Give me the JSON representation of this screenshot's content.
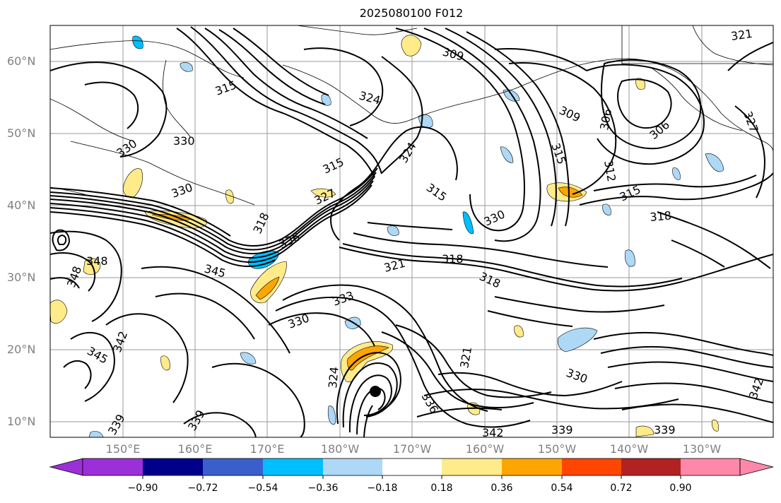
{
  "title": "2025080100 F012",
  "lat_labels": [
    "60°N",
    "50°N",
    "40°N",
    "30°N",
    "20°N",
    "10°N"
  ],
  "lon_labels": [
    "150°E",
    "160°E",
    "170°E",
    "180°W",
    "170°W",
    "160°W",
    "150°W",
    "140°W",
    "130°W"
  ],
  "colorbar": {
    "ticks": [
      "−0.90",
      "−0.72",
      "−0.54",
      "−0.36",
      "−0.18",
      "0.18",
      "0.36",
      "0.54",
      "0.72",
      "0.90"
    ],
    "colors": [
      "#9b30d8",
      "#00008b",
      "#3a5fcd",
      "#00bfff",
      "#add8f6",
      "#ffffff",
      "#ffeb8a",
      "#ffa500",
      "#ff4500",
      "#b22222",
      "#ff88aa"
    ]
  },
  "contour_labels": [
    {
      "text": "315"
    },
    {
      "text": "324"
    },
    {
      "text": "309"
    },
    {
      "text": "306"
    },
    {
      "text": "306"
    },
    {
      "text": "309"
    },
    {
      "text": "321"
    },
    {
      "text": "327"
    },
    {
      "text": "330"
    },
    {
      "text": "330"
    },
    {
      "text": "315"
    },
    {
      "text": "312"
    },
    {
      "text": "330"
    },
    {
      "text": "327"
    },
    {
      "text": "324"
    },
    {
      "text": "315"
    },
    {
      "text": "318"
    },
    {
      "text": "336"
    },
    {
      "text": "315"
    },
    {
      "text": "330"
    },
    {
      "text": "318"
    },
    {
      "text": "315"
    },
    {
      "text": "348"
    },
    {
      "text": "348"
    },
    {
      "text": "345"
    },
    {
      "text": "321"
    },
    {
      "text": "318"
    },
    {
      "text": "318"
    },
    {
      "text": "333"
    },
    {
      "text": "330"
    },
    {
      "text": "342"
    },
    {
      "text": "345"
    },
    {
      "text": "324"
    },
    {
      "text": "321"
    },
    {
      "text": "330"
    },
    {
      "text": "342"
    },
    {
      "text": "339"
    },
    {
      "text": "339"
    },
    {
      "text": "339"
    },
    {
      "text": "339"
    },
    {
      "text": "336"
    },
    {
      "text": "342"
    }
  ]
}
